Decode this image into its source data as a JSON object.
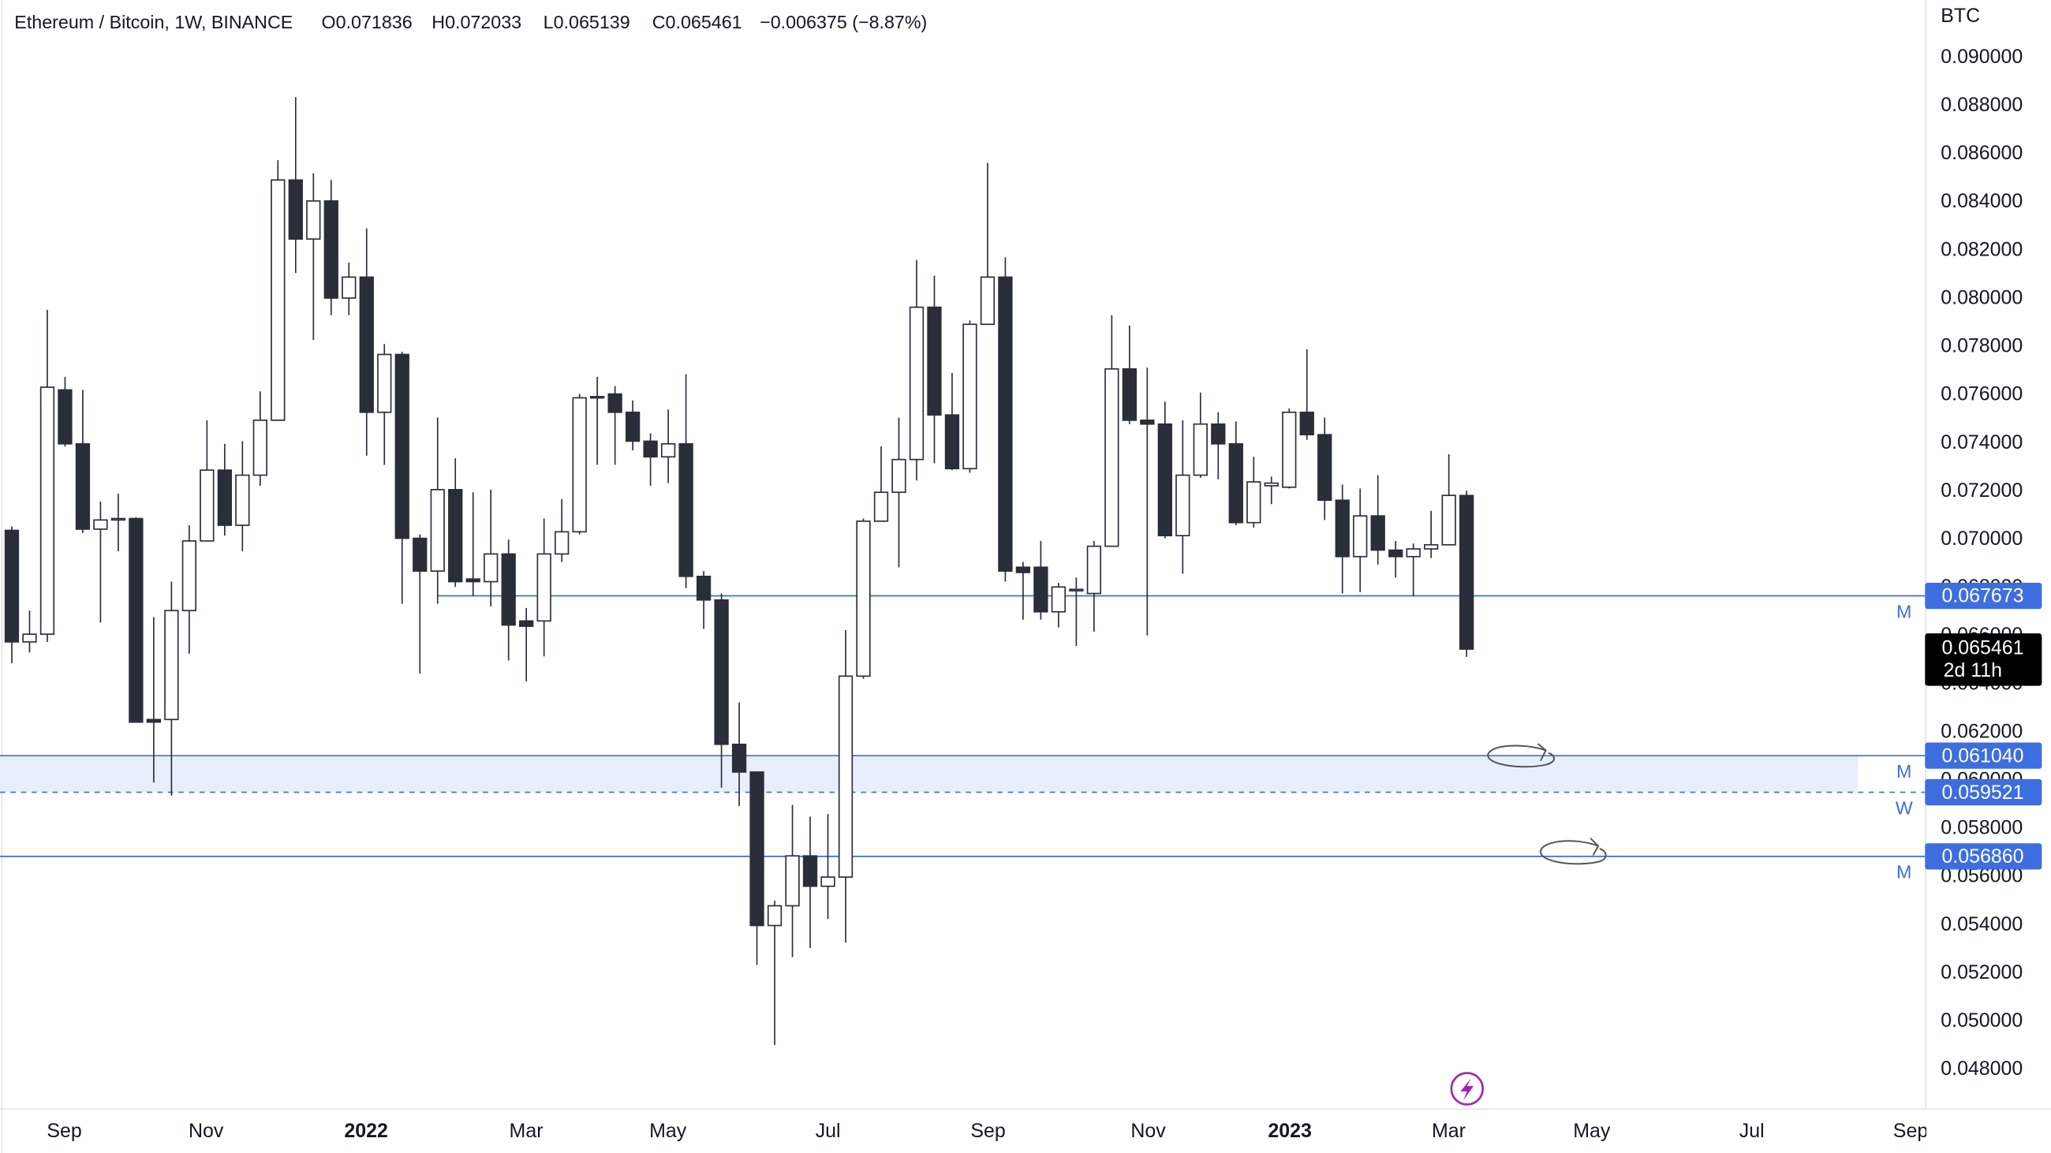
{
  "chart_data": {
    "type": "candlestick",
    "title": "Ethereum / Bitcoin, 1W, BINANCE",
    "header_values": [
      "O0.071836",
      "H0.072033",
      "L0.065139",
      "C0.065461",
      "−0.006375 (−8.87%)"
    ],
    "y_axis_label": "BTC",
    "categories": [
      "Sep",
      "Nov",
      "2022",
      "Mar",
      "May",
      "Jul",
      "Sep",
      "Nov",
      "2023",
      "Mar",
      "May",
      "Jul",
      "Sep"
    ],
    "open": [
      0.07039,
      0.06576,
      0.06608,
      0.07622,
      0.07398,
      0.07044,
      0.07082,
      0.07088,
      0.06254,
      0.06254,
      0.06706,
      0.06995,
      0.07289,
      0.0706,
      0.07268,
      0.07496,
      0.08493,
      0.08248,
      0.08406,
      0.08003,
      0.0809,
      0.07529,
      0.07769,
      0.07006,
      0.0687,
      0.07208,
      0.06837,
      0.06826,
      0.06941,
      0.06663,
      0.06663,
      0.06941,
      0.07033,
      0.07589,
      0.07605,
      0.07529,
      0.07409,
      0.07344,
      0.07398,
      0.06848,
      0.0675,
      0.06151,
      0.06036,
      0.05399,
      0.05481,
      0.05688,
      0.05562,
      0.056,
      0.06434,
      0.07077,
      0.07197,
      0.07333,
      0.07965,
      0.07518,
      0.07295,
      0.07894,
      0.0809,
      0.06886,
      0.06886,
      0.06701,
      0.06788,
      0.06777,
      0.06973,
      0.07709,
      0.07496,
      0.0748,
      0.07017,
      0.07268,
      0.0748,
      0.07398,
      0.07071,
      0.07224,
      0.07218,
      0.07529,
      0.07436,
      0.07164,
      0.0693,
      0.07099,
      0.06957,
      0.0693,
      0.06962,
      0.06979,
      0.071836
    ],
    "high": [
      0.07055,
      0.06706,
      0.07954,
      0.07676,
      0.07622,
      0.07159,
      0.07191,
      0.07093,
      0.06679,
      0.06826,
      0.0706,
      0.07496,
      0.07398,
      0.07409,
      0.07616,
      0.08575,
      0.08837,
      0.08521,
      0.08493,
      0.0815,
      0.08292,
      0.07812,
      0.0778,
      0.07022,
      0.07507,
      0.07338,
      0.07197,
      0.07208,
      0.07001,
      0.06717,
      0.07088,
      0.07169,
      0.07605,
      0.07676,
      0.07638,
      0.07578,
      0.07442,
      0.0754,
      0.07687,
      0.0687,
      0.06777,
      0.06325,
      0.06036,
      0.05502,
      0.059,
      0.05851,
      0.05862,
      0.06625,
      0.07088,
      0.07387,
      0.07507,
      0.08161,
      0.08096,
      0.07692,
      0.0791,
      0.08564,
      0.08172,
      0.06908,
      0.06995,
      0.06821,
      0.06843,
      0.06995,
      0.07932,
      0.07889,
      0.07714,
      0.07573,
      0.07496,
      0.07611,
      0.07529,
      0.07491,
      0.07344,
      0.07262,
      0.07545,
      0.07791,
      0.07507,
      0.07229,
      0.07213,
      0.07268,
      0.06995,
      0.06984,
      0.0712,
      0.07355,
      0.072033
    ],
    "low": [
      0.06488,
      0.06532,
      0.06576,
      0.07387,
      0.07028,
      0.06657,
      0.06952,
      0.06243,
      0.05993,
      0.05938,
      0.06527,
      0.06995,
      0.07017,
      0.06952,
      0.07224,
      0.07496,
      0.08107,
      0.07829,
      0.07932,
      0.07932,
      0.07349,
      0.07311,
      0.06734,
      0.06445,
      0.06734,
      0.06804,
      0.06766,
      0.06723,
      0.06499,
      0.06412,
      0.06516,
      0.06908,
      0.07022,
      0.07311,
      0.07311,
      0.07371,
      0.07224,
      0.07235,
      0.06799,
      0.0663,
      0.05971,
      0.05895,
      0.05235,
      0.04903,
      0.05268,
      0.05306,
      0.05426,
      0.05328,
      0.06423,
      0.07077,
      0.06886,
      0.07246,
      0.07317,
      0.07289,
      0.07278,
      0.07894,
      0.06826,
      0.06668,
      0.06668,
      0.06636,
      0.06559,
      0.06619,
      0.06973,
      0.0748,
      0.06603,
      0.07006,
      0.06859,
      0.07257,
      0.07251,
      0.0706,
      0.0705,
      0.07148,
      0.07213,
      0.07415,
      0.07082,
      0.06777,
      0.06783,
      0.06897,
      0.06843,
      0.06766,
      0.06924,
      0.06979,
      0.065139
    ],
    "close": [
      0.06576,
      0.06608,
      0.07633,
      0.07398,
      0.07044,
      0.07082,
      0.07088,
      0.06243,
      0.06243,
      0.06706,
      0.06995,
      0.07289,
      0.0706,
      0.07268,
      0.07496,
      0.08493,
      0.08248,
      0.08406,
      0.08003,
      0.0809,
      0.07529,
      0.07769,
      0.07006,
      0.0687,
      0.07208,
      0.06826,
      0.06826,
      0.06941,
      0.06646,
      0.06641,
      0.06941,
      0.07033,
      0.07589,
      0.07594,
      0.07529,
      0.07409,
      0.07344,
      0.07398,
      0.06848,
      0.0675,
      0.06151,
      0.06036,
      0.05399,
      0.05481,
      0.05688,
      0.05562,
      0.056,
      0.06434,
      0.07077,
      0.07197,
      0.07333,
      0.07965,
      0.07518,
      0.07295,
      0.07894,
      0.0809,
      0.0687,
      0.06864,
      0.06701,
      0.06804,
      0.06794,
      0.06973,
      0.07709,
      0.07496,
      0.0748,
      0.07017,
      0.07268,
      0.0748,
      0.07398,
      0.07071,
      0.0724,
      0.07235,
      0.07529,
      0.07436,
      0.07164,
      0.0693,
      0.07099,
      0.06957,
      0.0693,
      0.06962,
      0.06979,
      0.07184,
      0.065461
    ],
    "up_color": "#ffffff",
    "down_color": "#2a2e39",
    "wick_color": "#2a2e39",
    "ylim": [
      0.0464,
      0.0924
    ],
    "yticks": [
      {
        "value": 0.09,
        "label": "0.090000"
      },
      {
        "value": 0.088,
        "label": "0.088000"
      },
      {
        "value": 0.086,
        "label": "0.086000"
      },
      {
        "value": 0.084,
        "label": "0.084000"
      },
      {
        "value": 0.082,
        "label": "0.082000"
      },
      {
        "value": 0.08,
        "label": "0.080000"
      },
      {
        "value": 0.078,
        "label": "0.078000"
      },
      {
        "value": 0.076,
        "label": "0.076000"
      },
      {
        "value": 0.074,
        "label": "0.074000"
      },
      {
        "value": 0.072,
        "label": "0.072000"
      },
      {
        "value": 0.07,
        "label": "0.070000"
      },
      {
        "value": 0.068,
        "label": "0.068000"
      },
      {
        "value": 0.066,
        "label": "0.066000"
      },
      {
        "value": 0.064,
        "label": "0.064000"
      },
      {
        "value": 0.062,
        "label": "0.062000"
      },
      {
        "value": 0.06,
        "label": "0.060000"
      },
      {
        "value": 0.058,
        "label": "0.058000"
      },
      {
        "value": 0.056,
        "label": "0.056000"
      },
      {
        "value": 0.054,
        "label": "0.054000"
      },
      {
        "value": 0.052,
        "label": "0.052000"
      },
      {
        "value": 0.05,
        "label": "0.050000"
      },
      {
        "value": 0.048,
        "label": "0.048000"
      }
    ],
    "grid": false,
    "levels": [
      {
        "value": 0.067673,
        "label": "0.067673",
        "tag": "M",
        "dashed": false
      },
      {
        "value": 0.06104,
        "label": "0.061040",
        "tag": "M",
        "dashed": false
      },
      {
        "value": 0.059521,
        "label": "0.059521",
        "tag": "W",
        "dashed": true
      },
      {
        "value": 0.05686,
        "label": "0.056860",
        "tag": "M",
        "dashed": false
      }
    ],
    "level_color": "#3d6ee0",
    "zone": [
      0.059521,
      0.06104
    ],
    "zone_color": "#e8eefc",
    "countdown": "2d 11h"
  }
}
